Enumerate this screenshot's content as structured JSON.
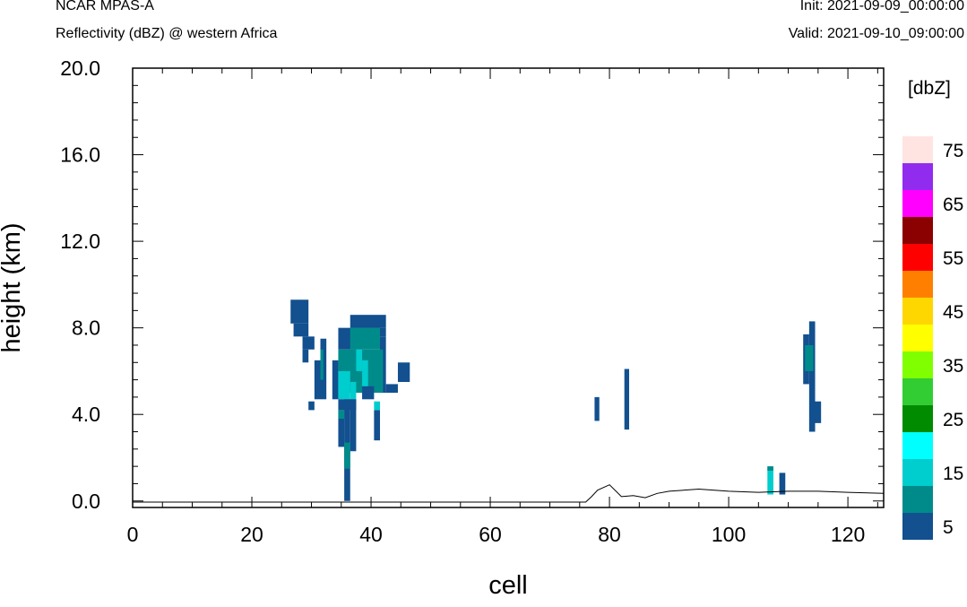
{
  "header": {
    "model": "NCAR MPAS-A",
    "field": "Reflectivity (dBZ) @ western Africa",
    "init": "Init: 2021-09-09_00:00:00",
    "valid": "Valid: 2021-09-10_09:00:00"
  },
  "chart_data": {
    "type": "heatmap",
    "xlabel": "cell",
    "ylabel": "height (km)",
    "xlim": [
      0,
      126
    ],
    "ylim": [
      -0.3,
      20.0
    ],
    "x_ticks": [
      0,
      20,
      40,
      60,
      80,
      100,
      120
    ],
    "x_tick_labels": [
      "0",
      "20",
      "40",
      "60",
      "80",
      "100",
      "120"
    ],
    "y_ticks": [
      0.0,
      4.0,
      8.0,
      12.0,
      16.0,
      20.0
    ],
    "y_tick_labels": [
      "0.0",
      "4.0",
      "8.0",
      "12.0",
      "16.0",
      "20.0"
    ],
    "colorbar": {
      "units": "[dbZ]",
      "levels": [
        5,
        10,
        15,
        20,
        25,
        30,
        35,
        40,
        45,
        50,
        55,
        60,
        65,
        70,
        75
      ],
      "colors": [
        "#12508f",
        "#008b8b",
        "#00cdcd",
        "#00ffff",
        "#008b00",
        "#32cd32",
        "#7fff00",
        "#ffff00",
        "#ffd700",
        "#ff8000",
        "#ff0000",
        "#8b0000",
        "#ff00ff",
        "#912cee",
        "#ffe4e1"
      ],
      "tick_labels": [
        "5",
        "15",
        "25",
        "35",
        "45",
        "55",
        "65",
        "75"
      ]
    },
    "cells": [
      {
        "x0": 26.5,
        "x1": 29.5,
        "y0": 8.2,
        "y1": 9.3,
        "dbz": 5
      },
      {
        "x0": 27,
        "x1": 29.5,
        "y0": 7.6,
        "y1": 8.2,
        "dbz": 5
      },
      {
        "x0": 28.5,
        "x1": 30.5,
        "y0": 7.0,
        "y1": 7.6,
        "dbz": 5
      },
      {
        "x0": 28.5,
        "x1": 29.5,
        "y0": 6.4,
        "y1": 7.0,
        "dbz": 5
      },
      {
        "x0": 30.5,
        "x1": 31.5,
        "y0": 4.7,
        "y1": 6.5,
        "dbz": 5
      },
      {
        "x0": 31.5,
        "x1": 32.5,
        "y0": 4.7,
        "y1": 7.5,
        "dbz": 5
      },
      {
        "x0": 31.5,
        "x1": 32,
        "y0": 5.6,
        "y1": 7.0,
        "dbz": 10
      },
      {
        "x0": 29.5,
        "x1": 30.5,
        "y0": 4.2,
        "y1": 4.6,
        "dbz": 5
      },
      {
        "x0": 33.5,
        "x1": 34.5,
        "y0": 4.7,
        "y1": 6.5,
        "dbz": 5
      },
      {
        "x0": 34.5,
        "x1": 37.5,
        "y0": 7.0,
        "y1": 8.0,
        "dbz": 5
      },
      {
        "x0": 36.5,
        "x1": 42.5,
        "y0": 8.0,
        "y1": 8.6,
        "dbz": 5
      },
      {
        "x0": 37.5,
        "x1": 42.5,
        "y0": 7.6,
        "y1": 8.0,
        "dbz": 5
      },
      {
        "x0": 41.5,
        "x1": 42.5,
        "y0": 5.0,
        "y1": 7.6,
        "dbz": 5
      },
      {
        "x0": 34.5,
        "x1": 42,
        "y0": 5.0,
        "y1": 7.0,
        "dbz": 10
      },
      {
        "x0": 36.5,
        "x1": 41.5,
        "y0": 7.0,
        "y1": 8.0,
        "dbz": 10
      },
      {
        "x0": 37.5,
        "x1": 38.5,
        "y0": 6.0,
        "y1": 7.0,
        "dbz": 15
      },
      {
        "x0": 34.5,
        "x1": 36.5,
        "y0": 4.7,
        "y1": 6.0,
        "dbz": 15
      },
      {
        "x0": 38.5,
        "x1": 39.5,
        "y0": 5.0,
        "y1": 6.5,
        "dbz": 15
      },
      {
        "x0": 36.5,
        "x1": 37.5,
        "y0": 4.7,
        "y1": 5.5,
        "dbz": 15
      },
      {
        "x0": 34.5,
        "x1": 37.5,
        "y0": 4.2,
        "y1": 4.7,
        "dbz": 5
      },
      {
        "x0": 38.5,
        "x1": 40.5,
        "y0": 4.7,
        "y1": 5.3,
        "dbz": 5
      },
      {
        "x0": 42.5,
        "x1": 44.5,
        "y0": 5.0,
        "y1": 5.4,
        "dbz": 5
      },
      {
        "x0": 44.5,
        "x1": 46.5,
        "y0": 5.5,
        "y1": 6.4,
        "dbz": 5
      },
      {
        "x0": 34.5,
        "x1": 35.5,
        "y0": 2.5,
        "y1": 4.2,
        "dbz": 5
      },
      {
        "x0": 34.5,
        "x1": 35.5,
        "y0": 3.8,
        "y1": 4.2,
        "dbz": 10
      },
      {
        "x0": 35.5,
        "x1": 36.5,
        "y0": 1.5,
        "y1": 4.7,
        "dbz": 5
      },
      {
        "x0": 35.5,
        "x1": 36.5,
        "y0": 1.5,
        "y1": 2.7,
        "dbz": 10
      },
      {
        "x0": 35.5,
        "x1": 36.5,
        "y0": 0.0,
        "y1": 1.5,
        "dbz": 5
      },
      {
        "x0": 36.5,
        "x1": 37.5,
        "y0": 2.3,
        "y1": 4.7,
        "dbz": 5
      },
      {
        "x0": 40.5,
        "x1": 41.5,
        "y0": 2.8,
        "y1": 4.2,
        "dbz": 5
      },
      {
        "x0": 40.5,
        "x1": 41.5,
        "y0": 4.2,
        "y1": 4.6,
        "dbz": 15
      },
      {
        "x0": 77.5,
        "x1": 78.3,
        "y0": 3.7,
        "y1": 4.8,
        "dbz": 5
      },
      {
        "x0": 82.5,
        "x1": 83.3,
        "y0": 3.3,
        "y1": 6.1,
        "dbz": 5
      },
      {
        "x0": 112.5,
        "x1": 113.5,
        "y0": 5.4,
        "y1": 7.7,
        "dbz": 5
      },
      {
        "x0": 113.5,
        "x1": 114.5,
        "y0": 3.2,
        "y1": 8.3,
        "dbz": 5
      },
      {
        "x0": 112.8,
        "x1": 114.2,
        "y0": 6.0,
        "y1": 7.2,
        "dbz": 10
      },
      {
        "x0": 114.2,
        "x1": 115.5,
        "y0": 3.6,
        "y1": 4.6,
        "dbz": 5
      },
      {
        "x0": 106.5,
        "x1": 107.5,
        "y0": 0.3,
        "y1": 1.6,
        "dbz": 15
      },
      {
        "x0": 106.5,
        "x1": 107.5,
        "y0": 1.4,
        "y1": 1.6,
        "dbz": 10
      },
      {
        "x0": 108.5,
        "x1": 109.5,
        "y0": 0.3,
        "y1": 1.3,
        "dbz": 5
      }
    ],
    "terrain": {
      "x": [
        0,
        76,
        77,
        78,
        80,
        82,
        84,
        86,
        88,
        90,
        95,
        100,
        105,
        110,
        115,
        120,
        126
      ],
      "y": [
        -0.05,
        -0.05,
        0.2,
        0.5,
        0.75,
        0.2,
        0.25,
        0.15,
        0.35,
        0.45,
        0.55,
        0.45,
        0.4,
        0.45,
        0.45,
        0.4,
        0.35
      ]
    }
  }
}
